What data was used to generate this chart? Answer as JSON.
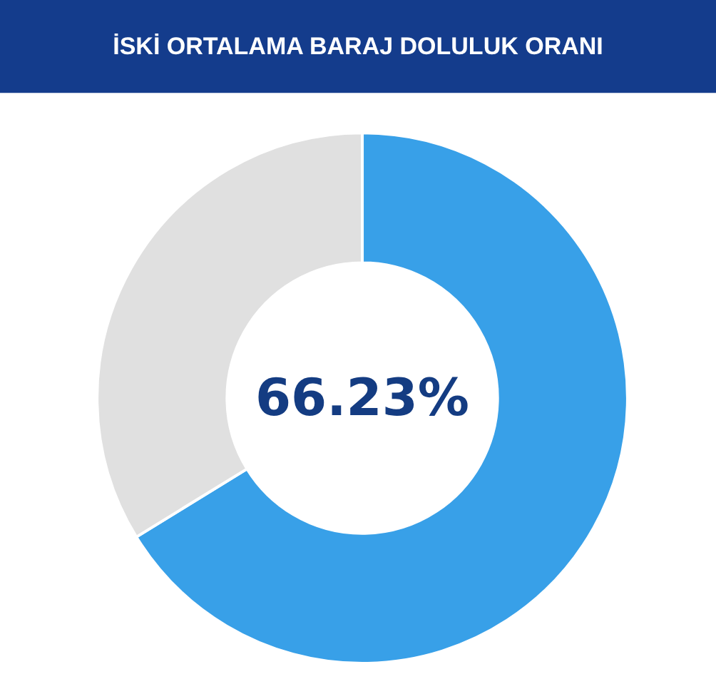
{
  "chart_data": {
    "type": "donut",
    "title": "İSKİ ORTALAMA BARAJ DOLULUK ORANI",
    "categories": [
      null,
      null
    ],
    "values": [
      66.23,
      33.77
    ],
    "colors": [
      "#38a0e8",
      "#e0e0e0"
    ],
    "annotations": [
      "66.23%"
    ],
    "legend": false
  }
}
